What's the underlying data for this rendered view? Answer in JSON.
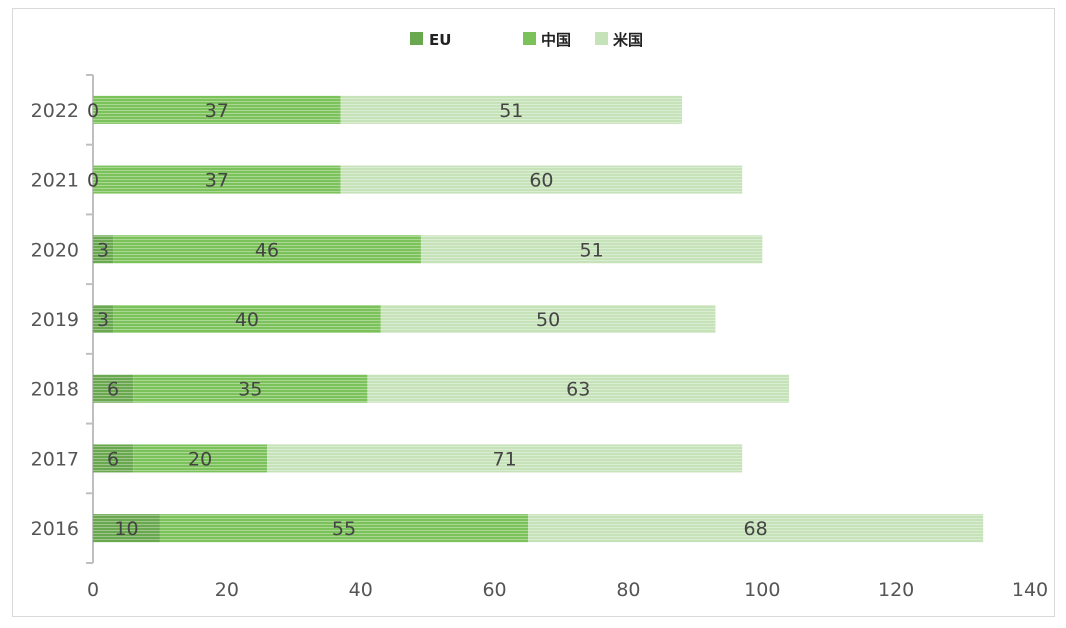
{
  "chart_data": {
    "type": "bar",
    "orientation": "horizontal",
    "stacked": true,
    "categories": [
      "2016",
      "2017",
      "2018",
      "2019",
      "2020",
      "2021",
      "2022"
    ],
    "series": [
      {
        "name": "EU",
        "values": [
          10,
          6,
          6,
          3,
          3,
          0,
          0
        ],
        "color": "#6aa84f"
      },
      {
        "name": "中国",
        "values": [
          55,
          20,
          35,
          40,
          46,
          37,
          37
        ],
        "color": "#7cc25a"
      },
      {
        "name": "米国",
        "values": [
          68,
          71,
          63,
          50,
          51,
          60,
          51
        ],
        "color": "#c6e2b8"
      }
    ],
    "x_ticks": [
      "0",
      "20",
      "40",
      "60",
      "80",
      "100",
      "120",
      "140"
    ],
    "xlim": [
      0,
      140
    ],
    "legend_position": "top",
    "grid": false
  }
}
